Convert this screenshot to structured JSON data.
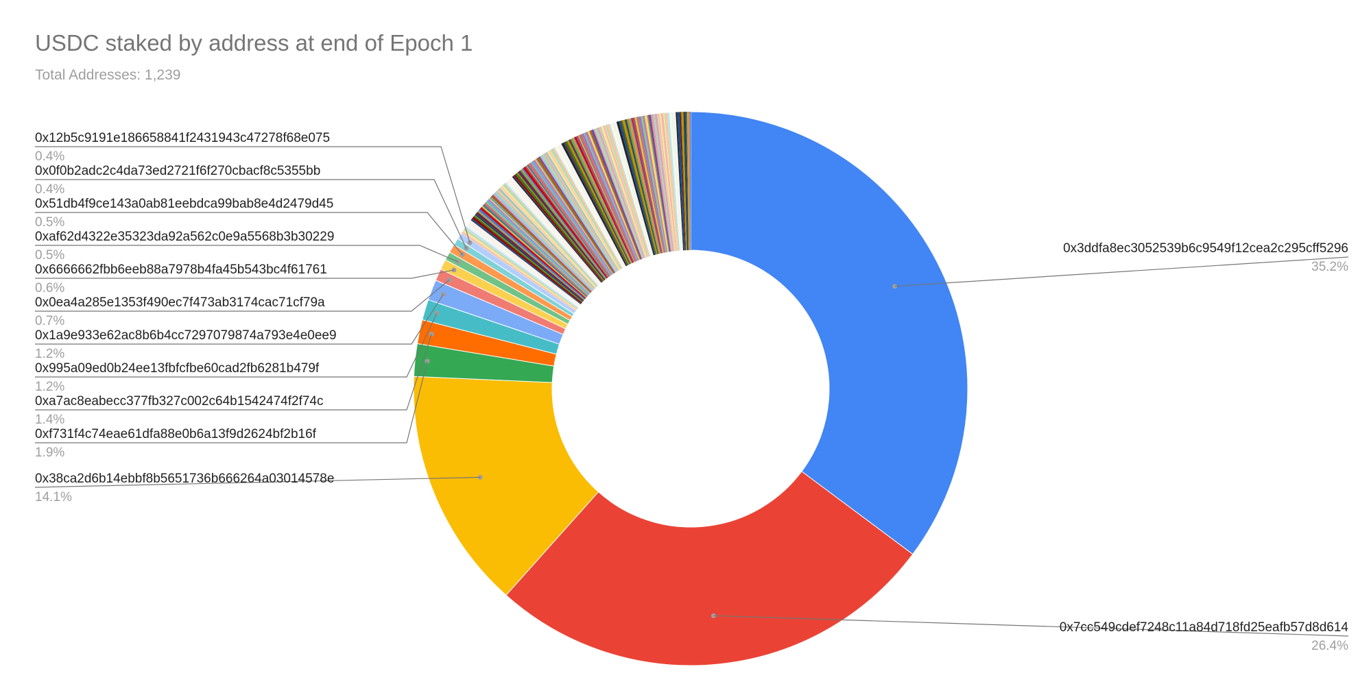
{
  "chart_data": {
    "type": "pie",
    "donut": true,
    "title": "USDC staked by address at end of Epoch 1",
    "subtitle": "Total Addresses: 1,239",
    "slices": [
      {
        "label": "0x3ddfa8ec3052539b6c9549f12cea2c295cff5296",
        "value": 35.2,
        "display": "35.2%",
        "color": "#4285f4"
      },
      {
        "label": "0x7cc549cdef7248c11a84d718fd25eafb57d8d614",
        "value": 26.4,
        "display": "26.4%",
        "color": "#ea4335"
      },
      {
        "label": "0x38ca2d6b14ebbf8b5651736b666264a03014578e",
        "value": 14.1,
        "display": "14.1%",
        "color": "#fbbc04"
      },
      {
        "label": "0xf731f4c74eae61dfa88e0b6a13f9d2624bf2b16f",
        "value": 1.9,
        "display": "1.9%",
        "color": "#34a853"
      },
      {
        "label": "0xa7ac8eabecc377fb327c002c64b1542474f2f74c",
        "value": 1.4,
        "display": "1.4%",
        "color": "#ff6d01"
      },
      {
        "label": "0x995a09ed0b24ee13fbfcfbe60cad2fb6281b479f",
        "value": 1.2,
        "display": "1.2%",
        "color": "#46bdc6"
      },
      {
        "label": "0x1a9e933e62ac8b6b4cc7297079874a793e4e0ee9",
        "value": 1.2,
        "display": "1.2%",
        "color": "#7baaf7"
      },
      {
        "label": "0x0ea4a285e1353f490ec7f473ab3174cac71cf79a",
        "value": 0.7,
        "display": "0.7%",
        "color": "#f07b72"
      },
      {
        "label": "0x6666662fbb6eeb88a7978b4fa45b543bc4f61761",
        "value": 0.6,
        "display": "0.6%",
        "color": "#fcd04f"
      },
      {
        "label": "0xaf62d4322e35323da92a562c0e9a5568b3b30229",
        "value": 0.5,
        "display": "0.5%",
        "color": "#71c287"
      },
      {
        "label": "0x51db4f9ce143a0ab81eebdca99bab8e4d2479d45",
        "value": 0.5,
        "display": "0.5%",
        "color": "#ff994d"
      },
      {
        "label": "0x0f0b2adc2c4da73ed2721f6f270cbacf8c5355bb",
        "value": 0.4,
        "display": "0.4%",
        "color": "#7ed1d7"
      },
      {
        "label": "0x12b5c9191e186658841f2431943c47278f68e075",
        "value": 0.4,
        "display": "0.4%",
        "color": "#b3cefb"
      }
    ],
    "other_addresses_share": 14.0,
    "other_colors": [
      "#f7b4ae",
      "#fde49b",
      "#aedcba",
      "#ffc599",
      "#b5e5e8",
      "#ecf3fe",
      "#fef8e3",
      "#eaf6ed",
      "#fff0e6",
      "#f3f3f3",
      "#222222",
      "#0b5394",
      "#990000",
      "#38761d",
      "#bf9000",
      "#134f5c",
      "#741b47",
      "#6aa84f",
      "#e69138",
      "#3c78d8",
      "#cc0000",
      "#a64d79",
      "#f1c232",
      "#45818e",
      "#e06666",
      "#8e7cc3",
      "#93c47d",
      "#6fa8dc",
      "#c27ba0",
      "#ffd966",
      "#76a5af",
      "#b45f06",
      "#674ea7",
      "#ea9999",
      "#9fc5e8",
      "#b6d7a8",
      "#d5a6bd",
      "#f9cb9c",
      "#a2c4c9",
      "#ffe599"
    ]
  }
}
